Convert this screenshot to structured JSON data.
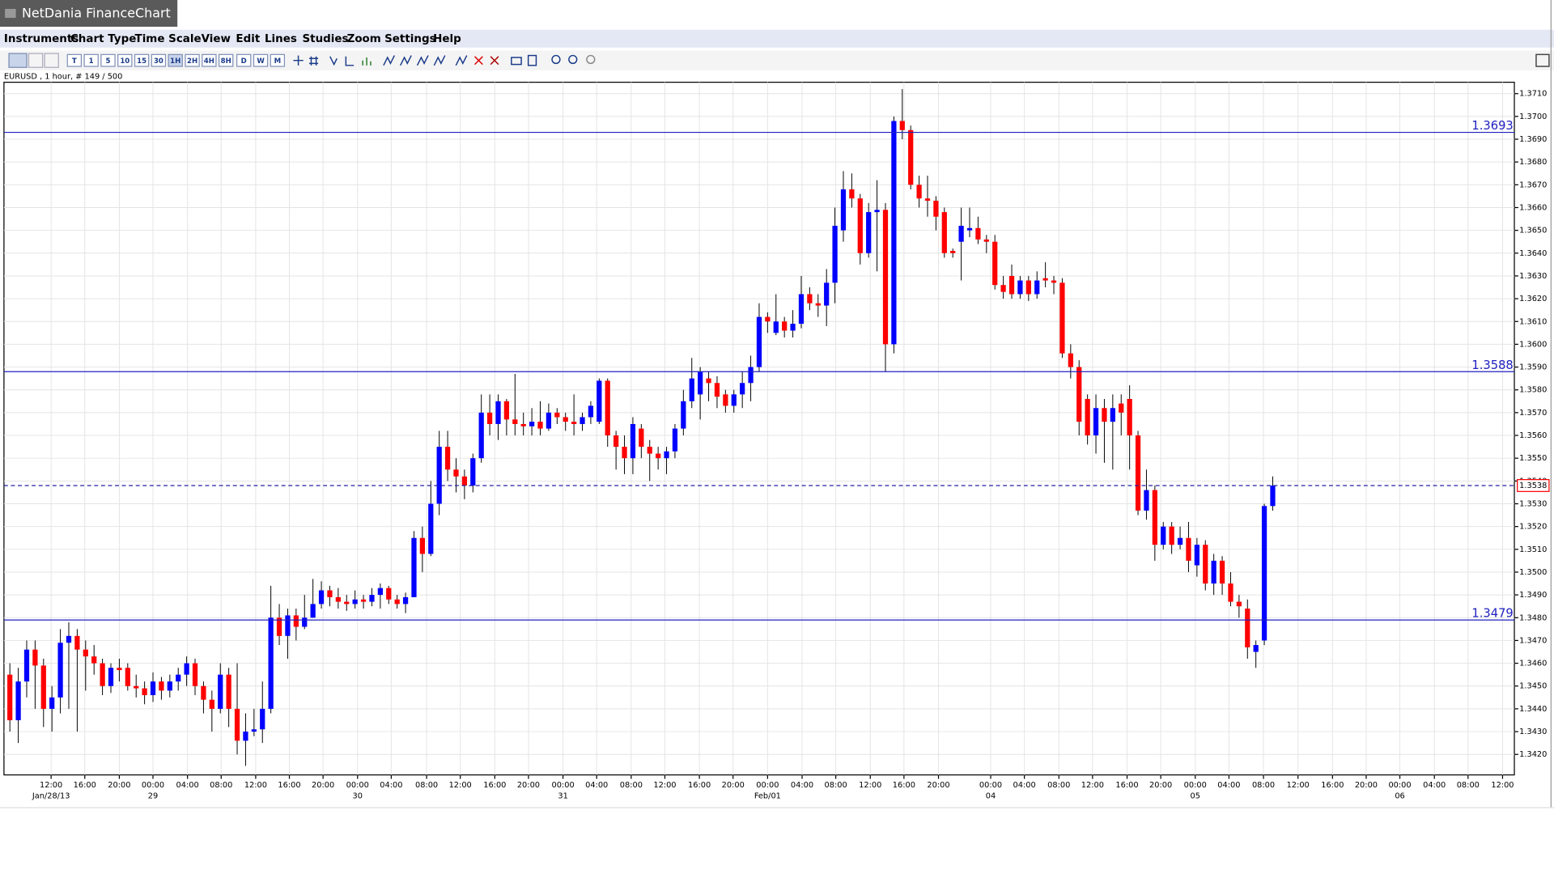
{
  "window": {
    "title": "NetDania FinanceChart"
  },
  "menu": [
    "Instruments",
    "Chart Type",
    "Time Scale",
    "View",
    "Edit",
    "Lines",
    "Studies",
    "Zoom",
    "Settings",
    "Help"
  ],
  "toolbar": [
    "T",
    "1",
    "5",
    "10",
    "15",
    "30",
    "1H",
    "2H",
    "4H",
    "8H",
    "D",
    "W",
    "M"
  ],
  "chart_data": {
    "type": "candlestick",
    "title": "EURUSD , 1 hour, # 149 / 500",
    "up_color": "#0000ff",
    "down_color": "#ff0000",
    "grid": true,
    "open": [
      1.3455,
      1.3435,
      1.3452,
      1.3466,
      1.3459,
      1.344,
      1.3445,
      1.3469,
      1.3472,
      1.3466,
      1.3463,
      1.346,
      1.345,
      1.3458,
      1.3458,
      1.345,
      1.3449,
      1.3446,
      1.3452,
      1.3448,
      1.3452,
      1.3455,
      1.346,
      1.345,
      1.3444,
      1.344,
      1.3455,
      1.344,
      1.3426,
      1.343,
      1.3431,
      1.344,
      1.348,
      1.3472,
      1.3481,
      1.3476,
      1.348,
      1.3486,
      1.3492,
      1.3489,
      1.3487,
      1.3486,
      1.3488,
      1.3487,
      1.349,
      1.3493,
      1.3488,
      1.3486,
      1.3489,
      1.3515,
      1.3508,
      1.353,
      1.3555,
      1.3545,
      1.3542,
      1.3538,
      1.355,
      1.357,
      1.3565,
      1.3575,
      1.3567,
      1.3565,
      1.3564,
      1.3566,
      1.3563,
      1.357,
      1.3568,
      1.3566,
      1.3565,
      1.3568,
      1.3566,
      1.3584,
      1.356,
      1.3555,
      1.355,
      1.3563,
      1.3555,
      1.3552,
      1.355,
      1.3553,
      1.3563,
      1.3575,
      1.3578,
      1.3585,
      1.3583,
      1.3578,
      1.3573,
      1.3578,
      1.3583,
      1.359,
      1.3612,
      1.3605,
      1.361,
      1.3606,
      1.3609,
      1.3622,
      1.3618,
      1.3617,
      1.3627,
      1.365,
      1.3668,
      1.3664,
      1.364,
      1.3658,
      1.3659,
      1.36,
      1.3698,
      1.3694,
      1.367,
      1.3664,
      1.3663,
      1.3658,
      1.3641,
      1.3645,
      1.365,
      1.3651,
      1.3646,
      1.3645,
      1.3626,
      1.363,
      1.3622,
      1.3628,
      1.3622,
      1.3629,
      1.3628,
      1.3627,
      1.3596,
      1.359,
      1.3576,
      1.356,
      1.3572,
      1.3566,
      1.3574,
      1.3576,
      1.356,
      1.3527,
      1.3536,
      1.3512,
      1.352,
      1.3512,
      1.3515,
      1.3503,
      1.3512,
      1.3495,
      1.3505,
      1.3495,
      1.3487,
      1.3484,
      1.3465,
      1.347,
      1.3529
    ],
    "high": [
      1.346,
      1.3458,
      1.347,
      1.347,
      1.3462,
      1.345,
      1.3475,
      1.3478,
      1.3475,
      1.347,
      1.3468,
      1.3462,
      1.346,
      1.3462,
      1.346,
      1.3455,
      1.3452,
      1.3456,
      1.3454,
      1.3455,
      1.3458,
      1.3463,
      1.3462,
      1.3452,
      1.3448,
      1.346,
      1.3458,
      1.346,
      1.3438,
      1.344,
      1.3452,
      1.3494,
      1.3486,
      1.3484,
      1.3484,
      1.349,
      1.3497,
      1.3496,
      1.3494,
      1.3493,
      1.349,
      1.3492,
      1.349,
      1.3493,
      1.3495,
      1.3494,
      1.349,
      1.3491,
      1.3518,
      1.352,
      1.354,
      1.3562,
      1.3562,
      1.355,
      1.3545,
      1.3552,
      1.3578,
      1.3578,
      1.3578,
      1.3576,
      1.3587,
      1.357,
      1.3572,
      1.3575,
      1.3574,
      1.3572,
      1.357,
      1.3578,
      1.357,
      1.3575,
      1.3585,
      1.3585,
      1.3562,
      1.356,
      1.3568,
      1.3565,
      1.3558,
      1.3555,
      1.3555,
      1.3565,
      1.358,
      1.3594,
      1.359,
      1.3588,
      1.3586,
      1.358,
      1.358,
      1.3588,
      1.3595,
      1.3618,
      1.3614,
      1.3622,
      1.3612,
      1.3615,
      1.363,
      1.3625,
      1.3622,
      1.3633,
      1.366,
      1.3676,
      1.3675,
      1.3666,
      1.3662,
      1.3672,
      1.3662,
      1.37,
      1.3712,
      1.3696,
      1.3674,
      1.3674,
      1.3665,
      1.366,
      1.3642,
      1.366,
      1.366,
      1.3656,
      1.3648,
      1.3648,
      1.363,
      1.3635,
      1.363,
      1.363,
      1.3632,
      1.3636,
      1.363,
      1.3629,
      1.36,
      1.3593,
      1.3578,
      1.3578,
      1.3576,
      1.3578,
      1.3578,
      1.3582,
      1.3562,
      1.3545,
      1.3538,
      1.3522,
      1.3522,
      1.352,
      1.3522,
      1.3515,
      1.3514,
      1.3508,
      1.3507,
      1.35,
      1.349,
      1.3488,
      1.347,
      1.353,
      1.3542
    ],
    "low": [
      1.343,
      1.3425,
      1.3445,
      1.344,
      1.3432,
      1.343,
      1.3438,
      1.344,
      1.343,
      1.3448,
      1.3455,
      1.3446,
      1.3447,
      1.3452,
      1.3448,
      1.3445,
      1.3442,
      1.3443,
      1.3444,
      1.3445,
      1.3448,
      1.345,
      1.3446,
      1.3438,
      1.343,
      1.3438,
      1.3432,
      1.342,
      1.3415,
      1.3428,
      1.3425,
      1.3438,
      1.3468,
      1.3462,
      1.347,
      1.3475,
      1.348,
      1.3484,
      1.3485,
      1.3484,
      1.3483,
      1.3484,
      1.3484,
      1.3485,
      1.3484,
      1.3486,
      1.3484,
      1.3482,
      1.3489,
      1.35,
      1.3507,
      1.3525,
      1.354,
      1.3535,
      1.3532,
      1.3535,
      1.3548,
      1.356,
      1.3558,
      1.356,
      1.356,
      1.356,
      1.356,
      1.356,
      1.3562,
      1.3565,
      1.3562,
      1.356,
      1.3562,
      1.3565,
      1.3565,
      1.3555,
      1.3545,
      1.3543,
      1.3543,
      1.355,
      1.354,
      1.3545,
      1.3543,
      1.355,
      1.356,
      1.3572,
      1.3567,
      1.3575,
      1.3572,
      1.357,
      1.357,
      1.3572,
      1.3575,
      1.3588,
      1.3605,
      1.3604,
      1.3603,
      1.3603,
      1.3607,
      1.3615,
      1.3612,
      1.3608,
      1.3618,
      1.3645,
      1.366,
      1.3635,
      1.3638,
      1.3632,
      1.3588,
      1.3596,
      1.369,
      1.3668,
      1.366,
      1.3656,
      1.365,
      1.3638,
      1.3638,
      1.3628,
      1.3647,
      1.3644,
      1.364,
      1.3624,
      1.362,
      1.362,
      1.362,
      1.3619,
      1.362,
      1.3625,
      1.3622,
      1.3594,
      1.3585,
      1.356,
      1.3556,
      1.3552,
      1.3548,
      1.3545,
      1.356,
      1.3545,
      1.3525,
      1.3523,
      1.3505,
      1.351,
      1.3508,
      1.351,
      1.35,
      1.3498,
      1.3492,
      1.349,
      1.349,
      1.3485,
      1.348,
      1.3462,
      1.3458,
      1.3468,
      1.3527
    ],
    "close": [
      1.3435,
      1.3452,
      1.3466,
      1.3459,
      1.344,
      1.3445,
      1.3469,
      1.3472,
      1.3466,
      1.3463,
      1.346,
      1.345,
      1.3458,
      1.3457,
      1.345,
      1.3449,
      1.3446,
      1.3452,
      1.3448,
      1.3452,
      1.3455,
      1.346,
      1.345,
      1.3444,
      1.344,
      1.3455,
      1.344,
      1.3426,
      1.343,
      1.3431,
      1.344,
      1.348,
      1.3472,
      1.3481,
      1.3476,
      1.348,
      1.3486,
      1.3492,
      1.3489,
      1.3487,
      1.3486,
      1.3488,
      1.3487,
      1.349,
      1.3493,
      1.3488,
      1.3486,
      1.3489,
      1.3515,
      1.3508,
      1.353,
      1.3555,
      1.3545,
      1.3542,
      1.3538,
      1.355,
      1.357,
      1.3565,
      1.3575,
      1.3567,
      1.3565,
      1.3564,
      1.3566,
      1.3563,
      1.357,
      1.3568,
      1.3566,
      1.3565,
      1.3568,
      1.3573,
      1.3584,
      1.356,
      1.3555,
      1.355,
      1.3565,
      1.3555,
      1.3552,
      1.355,
      1.3553,
      1.3563,
      1.3575,
      1.3585,
      1.3588,
      1.3583,
      1.3577,
      1.3573,
      1.3578,
      1.3583,
      1.359,
      1.3612,
      1.361,
      1.361,
      1.3606,
      1.3609,
      1.3622,
      1.3618,
      1.3617,
      1.3627,
      1.3652,
      1.3668,
      1.3664,
      1.364,
      1.3658,
      1.3659,
      1.36,
      1.3698,
      1.3694,
      1.367,
      1.3664,
      1.3663,
      1.3656,
      1.364,
      1.364,
      1.3652,
      1.3651,
      1.3646,
      1.3645,
      1.3626,
      1.3623,
      1.3622,
      1.3628,
      1.3622,
      1.3628,
      1.3628,
      1.3627,
      1.3596,
      1.359,
      1.3566,
      1.356,
      1.3572,
      1.3566,
      1.3572,
      1.357,
      1.356,
      1.3527,
      1.3536,
      1.3512,
      1.352,
      1.3512,
      1.3515,
      1.3505,
      1.3512,
      1.3495,
      1.3505,
      1.3495,
      1.3487,
      1.3485,
      1.3467,
      1.3468,
      1.3529,
      1.3538
    ],
    "xlim": [
      -0.7,
      178.7
    ],
    "ylim": [
      1.3411,
      1.3715
    ],
    "xticks": [
      {
        "value": 4.9,
        "label": "12:00"
      },
      {
        "value": 8.9,
        "label": "16:00"
      },
      {
        "value": 13.0,
        "label": "20:00"
      },
      {
        "value": 17.0,
        "label": "00:00"
      },
      {
        "value": 21.1,
        "label": "04:00"
      },
      {
        "value": 25.1,
        "label": "08:00"
      },
      {
        "value": 29.2,
        "label": "12:00"
      },
      {
        "value": 33.2,
        "label": "16:00"
      },
      {
        "value": 37.2,
        "label": "20:00"
      },
      {
        "value": 41.3,
        "label": "00:00"
      },
      {
        "value": 45.3,
        "label": "04:00"
      },
      {
        "value": 49.5,
        "label": "08:00"
      },
      {
        "value": 53.5,
        "label": "12:00"
      },
      {
        "value": 57.6,
        "label": "16:00"
      },
      {
        "value": 61.6,
        "label": "20:00"
      },
      {
        "value": 65.7,
        "label": "00:00"
      },
      {
        "value": 69.7,
        "label": "04:00"
      },
      {
        "value": 73.8,
        "label": "08:00"
      },
      {
        "value": 77.8,
        "label": "12:00"
      },
      {
        "value": 81.9,
        "label": "16:00"
      },
      {
        "value": 85.9,
        "label": "20:00"
      },
      {
        "value": 90.0,
        "label": "00:00"
      },
      {
        "value": 94.1,
        "label": "04:00"
      },
      {
        "value": 98.1,
        "label": "08:00"
      },
      {
        "value": 102.2,
        "label": "12:00"
      },
      {
        "value": 106.2,
        "label": "16:00"
      },
      {
        "value": 110.3,
        "label": "20:00"
      },
      {
        "value": 116.5,
        "label": "00:00"
      },
      {
        "value": 120.5,
        "label": "04:00"
      },
      {
        "value": 124.6,
        "label": "08:00"
      },
      {
        "value": 128.6,
        "label": "12:00"
      },
      {
        "value": 132.7,
        "label": "16:00"
      },
      {
        "value": 136.7,
        "label": "20:00"
      },
      {
        "value": 140.8,
        "label": "00:00"
      },
      {
        "value": 144.8,
        "label": "04:00"
      },
      {
        "value": 148.9,
        "label": "08:00"
      },
      {
        "value": 153.0,
        "label": "12:00"
      },
      {
        "value": 157.1,
        "label": "16:00"
      },
      {
        "value": 161.1,
        "label": "20:00"
      },
      {
        "value": 165.1,
        "label": "00:00"
      },
      {
        "value": 169.2,
        "label": "04:00"
      },
      {
        "value": 173.2,
        "label": "08:00"
      },
      {
        "value": 177.3,
        "label": "12:00"
      }
    ],
    "date_ticks": [
      {
        "value": 4.9,
        "label": "Jan/28/13"
      },
      {
        "value": 17.0,
        "label": "29"
      },
      {
        "value": 41.3,
        "label": "30"
      },
      {
        "value": 65.7,
        "label": "31"
      },
      {
        "value": 90.0,
        "label": "Feb/01"
      },
      {
        "value": 116.5,
        "label": "04"
      },
      {
        "value": 140.8,
        "label": "05"
      },
      {
        "value": 165.1,
        "label": "06"
      }
    ],
    "yticks": [
      {
        "value": 1.342,
        "label": "1.3420"
      },
      {
        "value": 1.343,
        "label": "1.3430"
      },
      {
        "value": 1.344,
        "label": "1.3440"
      },
      {
        "value": 1.345,
        "label": "1.3450"
      },
      {
        "value": 1.346,
        "label": "1.3460"
      },
      {
        "value": 1.347,
        "label": "1.3470"
      },
      {
        "value": 1.348,
        "label": "1.3480"
      },
      {
        "value": 1.349,
        "label": "1.3490"
      },
      {
        "value": 1.35,
        "label": "1.3500"
      },
      {
        "value": 1.351,
        "label": "1.3510"
      },
      {
        "value": 1.352,
        "label": "1.3520"
      },
      {
        "value": 1.353,
        "label": "1.3530"
      },
      {
        "value": 1.354,
        "label": "1.3540"
      },
      {
        "value": 1.355,
        "label": "1.3550"
      },
      {
        "value": 1.356,
        "label": "1.3560"
      },
      {
        "value": 1.357,
        "label": "1.3570"
      },
      {
        "value": 1.358,
        "label": "1.3580"
      },
      {
        "value": 1.359,
        "label": "1.3590"
      },
      {
        "value": 1.36,
        "label": "1.3600"
      },
      {
        "value": 1.361,
        "label": "1.3610"
      },
      {
        "value": 1.362,
        "label": "1.3620"
      },
      {
        "value": 1.363,
        "label": "1.3630"
      },
      {
        "value": 1.364,
        "label": "1.3640"
      },
      {
        "value": 1.365,
        "label": "1.3650"
      },
      {
        "value": 1.366,
        "label": "1.3660"
      },
      {
        "value": 1.367,
        "label": "1.3670"
      },
      {
        "value": 1.368,
        "label": "1.3680"
      },
      {
        "value": 1.369,
        "label": "1.3690"
      },
      {
        "value": 1.37,
        "label": "1.3700"
      },
      {
        "value": 1.371,
        "label": "1.3710"
      }
    ],
    "hlines": [
      1.3693,
      1.3588,
      1.3479
    ],
    "hline_color": "#2020c0",
    "last_price": 1.3538,
    "last_color": "#ff0000"
  }
}
